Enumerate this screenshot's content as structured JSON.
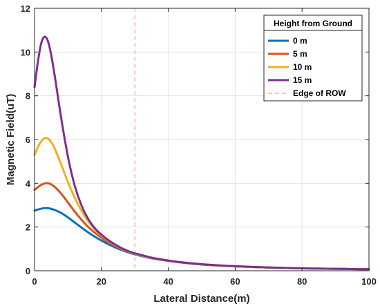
{
  "chart_data": {
    "type": "line",
    "xlabel": "Lateral Distance(m)",
    "ylabel": "Magnetic Field(uT)",
    "xlim": [
      0,
      100
    ],
    "ylim": [
      0,
      12
    ],
    "xticks": [
      0,
      20,
      40,
      60,
      80,
      100
    ],
    "yticks": [
      0,
      2,
      4,
      6,
      8,
      10,
      12
    ],
    "xtick_labels": [
      "0",
      "20",
      "40",
      "60",
      "80",
      "100"
    ],
    "ytick_labels": [
      "0",
      "2",
      "4",
      "6",
      "8",
      "10",
      "12"
    ],
    "grid": true,
    "legend": {
      "title": "Height from Ground",
      "placement": "top-right"
    },
    "series": [
      {
        "name": "0 m",
        "color": "#0072BD",
        "x": [
          0,
          1,
          2,
          3,
          4,
          5,
          6,
          8,
          10,
          12,
          14,
          16,
          18,
          20,
          22,
          25,
          28,
          30,
          35,
          40,
          45,
          50,
          55,
          60,
          70,
          80,
          90,
          100
        ],
        "y": [
          2.75,
          2.8,
          2.84,
          2.86,
          2.86,
          2.83,
          2.78,
          2.64,
          2.44,
          2.21,
          1.98,
          1.76,
          1.56,
          1.38,
          1.22,
          1.01,
          0.84,
          0.75,
          0.57,
          0.45,
          0.36,
          0.29,
          0.24,
          0.2,
          0.15,
          0.11,
          0.09,
          0.07
        ]
      },
      {
        "name": "5 m",
        "color": "#D95319",
        "x": [
          0,
          1,
          2,
          3,
          4,
          5,
          6,
          8,
          10,
          12,
          14,
          16,
          18,
          20,
          22,
          25,
          28,
          30,
          35,
          40,
          45,
          50,
          55,
          60,
          70,
          80,
          90,
          100
        ],
        "y": [
          3.7,
          3.82,
          3.93,
          3.99,
          4.0,
          3.95,
          3.84,
          3.52,
          3.12,
          2.71,
          2.34,
          2.01,
          1.74,
          1.51,
          1.31,
          1.06,
          0.87,
          0.77,
          0.58,
          0.46,
          0.36,
          0.29,
          0.24,
          0.2,
          0.15,
          0.11,
          0.09,
          0.07
        ]
      },
      {
        "name": "10 m",
        "color": "#EDB120",
        "x": [
          0,
          1,
          2,
          3,
          4,
          5,
          6,
          8,
          10,
          12,
          14,
          16,
          18,
          20,
          22,
          25,
          28,
          30,
          35,
          40,
          45,
          50,
          55,
          60,
          70,
          80,
          90,
          100
        ],
        "y": [
          5.3,
          5.65,
          5.92,
          6.06,
          6.05,
          5.88,
          5.6,
          4.85,
          4.05,
          3.35,
          2.75,
          2.28,
          1.9,
          1.61,
          1.38,
          1.1,
          0.89,
          0.78,
          0.59,
          0.46,
          0.37,
          0.3,
          0.24,
          0.2,
          0.15,
          0.11,
          0.09,
          0.07
        ]
      },
      {
        "name": "15 m",
        "color": "#7E2F8E",
        "x": [
          0,
          1,
          2,
          3,
          4,
          5,
          6,
          8,
          10,
          12,
          14,
          16,
          18,
          20,
          22,
          25,
          28,
          30,
          35,
          40,
          45,
          50,
          55,
          60,
          70,
          80,
          90,
          100
        ],
        "y": [
          8.4,
          9.55,
          10.4,
          10.7,
          10.5,
          9.85,
          8.95,
          6.95,
          5.2,
          3.9,
          3.0,
          2.38,
          1.95,
          1.65,
          1.41,
          1.12,
          0.9,
          0.8,
          0.6,
          0.47,
          0.37,
          0.3,
          0.25,
          0.21,
          0.15,
          0.11,
          0.09,
          0.07
        ]
      }
    ],
    "reference_lines": [
      {
        "name": "Edge of ROW",
        "orientation": "vertical",
        "x": 30,
        "color": "#F4A6A6",
        "style": "dashed"
      }
    ]
  }
}
